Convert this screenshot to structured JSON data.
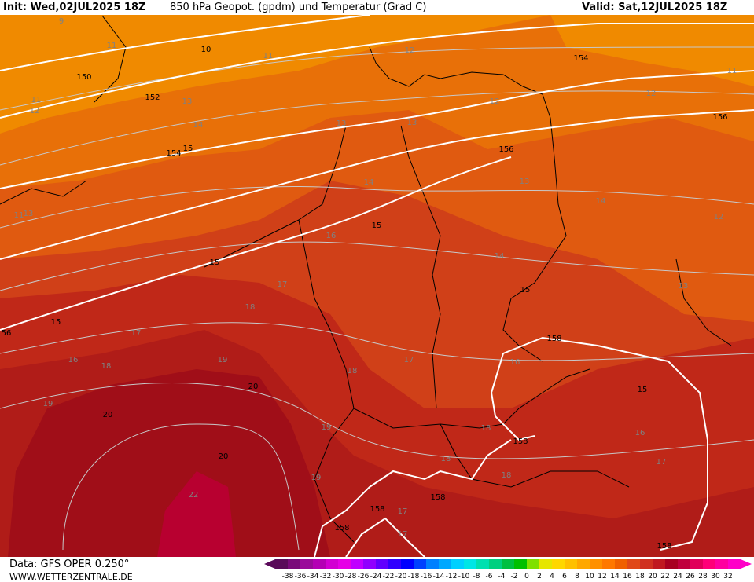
{
  "header": {
    "init": "Init: Wed,02JUL2025 18Z",
    "title": "850 hPa Geopot. (gpdm) und Temperatur (Grad C)",
    "valid": "Valid: Sat,12JUL2025 18Z"
  },
  "footer": {
    "data_source": "Data: GFS OPER 0.250°",
    "website": "WWW.WETTERZENTRALE.DE"
  },
  "scale": {
    "labels": [
      "-38",
      "-36",
      "-34",
      "-32",
      "-30",
      "-28",
      "-26",
      "-24",
      "-22",
      "-20",
      "-18",
      "-16",
      "-14",
      "-12",
      "-10",
      "-8",
      "-6",
      "-4",
      "-2",
      "0",
      "2",
      "4",
      "6",
      "8",
      "10",
      "12",
      "14",
      "16",
      "18",
      "20",
      "22",
      "24",
      "26",
      "28",
      "30",
      "32"
    ],
    "colors": [
      "#5a0a5a",
      "#7a0a7a",
      "#9a0a9a",
      "#b400b4",
      "#d200d2",
      "#e600e6",
      "#c000ff",
      "#9000ff",
      "#6000ff",
      "#3000ff",
      "#0000ff",
      "#0040ff",
      "#0080ff",
      "#00a8ff",
      "#00d0ff",
      "#00e6e6",
      "#00e0b0",
      "#00d080",
      "#00c040",
      "#00c000",
      "#80e000",
      "#e6e600",
      "#ffd700",
      "#ffc000",
      "#ffa800",
      "#ff9000",
      "#ff7800",
      "#f06000",
      "#e04818",
      "#d03020",
      "#c01820",
      "#a80020",
      "#c0003c",
      "#e0005a",
      "#ff0078",
      "#ff00a0",
      "#ff00c8"
    ]
  },
  "temperature_labels": [
    "9",
    "11",
    "10",
    "11",
    "12",
    "11",
    "12",
    "13",
    "13",
    "13",
    "12",
    "12",
    "12",
    "14",
    "14",
    "15",
    "11",
    "13",
    "14",
    "16",
    "15",
    "15",
    "17",
    "18",
    "17",
    "18",
    "19",
    "19",
    "20",
    "20",
    "20",
    "22",
    "19",
    "19",
    "18",
    "18",
    "18",
    "18",
    "17",
    "17",
    "17",
    "16",
    "15",
    "14",
    "13",
    "15",
    "16",
    "15",
    "16",
    "17",
    "13",
    "11"
  ],
  "geopotential_labels": [
    "150",
    "152",
    "154",
    "154",
    "156",
    "156",
    "158",
    "158",
    "158",
    "158",
    "158",
    "158",
    "56",
    "15",
    "15",
    "15",
    "15"
  ]
}
